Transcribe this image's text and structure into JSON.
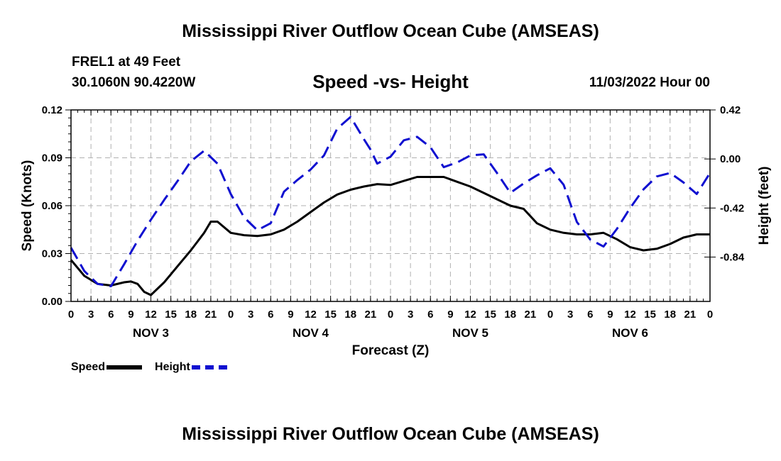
{
  "page": {
    "title_top": "Mississippi River Outflow Ocean Cube (AMSEAS)",
    "title_bottom": "Mississippi River Outflow Ocean Cube (AMSEAS)",
    "station": "FREL1 at 49 Feet",
    "coords": "30.1060N  90.4220W",
    "subtitle": "Speed -vs- Height",
    "datetime": "11/03/2022 Hour 00"
  },
  "legend": {
    "speed": "Speed",
    "height": "Height"
  },
  "colors": {
    "speed": "#000000",
    "height": "#1010d0",
    "grid": "#b0b0b0"
  },
  "chart_data": {
    "type": "line",
    "title": "Speed -vs- Height",
    "xlabel": "Forecast (Z)",
    "ylabel": "Speed (Knots)",
    "y2label": "Height (feet)",
    "xlim": [
      0,
      96
    ],
    "ylim": [
      0,
      0.12
    ],
    "y2lim": [
      -1.22,
      0.42
    ],
    "yticks": [
      0.0,
      0.03,
      0.06,
      0.09,
      0.12
    ],
    "ytick_labels": [
      "0.00",
      "0.03",
      "0.06",
      "0.09",
      "0.12"
    ],
    "y2ticks": [
      0.42,
      0.0,
      -0.42,
      -0.84
    ],
    "y2tick_labels": [
      "0.42",
      "0.00",
      "-0.42",
      "-0.84"
    ],
    "xtick_labels": [
      "0",
      "3",
      "6",
      "9",
      "12",
      "15",
      "18",
      "21",
      "0",
      "3",
      "6",
      "9",
      "12",
      "15",
      "18",
      "21",
      "0",
      "3",
      "6",
      "9",
      "12",
      "15",
      "18",
      "21",
      "0",
      "3",
      "6",
      "9",
      "12",
      "15",
      "18",
      "21",
      "0"
    ],
    "day_labels": [
      "NOV 3",
      "NOV 4",
      "NOV 5",
      "NOV 6"
    ],
    "grid": true,
    "series": [
      {
        "name": "Speed",
        "axis": "left",
        "style": "solid",
        "x": [
          0,
          2,
          4,
          6,
          8,
          9,
          10,
          11,
          12,
          14,
          16,
          18,
          20,
          21,
          22,
          24,
          26,
          28,
          30,
          32,
          34,
          36,
          38,
          40,
          42,
          44,
          46,
          48,
          50,
          52,
          54,
          56,
          58,
          60,
          62,
          64,
          66,
          68,
          70,
          72,
          74,
          76,
          78,
          80,
          82,
          84,
          86,
          88,
          90,
          92,
          94,
          96
        ],
        "y": [
          0.026,
          0.016,
          0.011,
          0.01,
          0.012,
          0.0125,
          0.011,
          0.006,
          0.004,
          0.012,
          0.022,
          0.032,
          0.043,
          0.05,
          0.05,
          0.043,
          0.0415,
          0.041,
          0.042,
          0.045,
          0.05,
          0.056,
          0.062,
          0.067,
          0.07,
          0.072,
          0.0735,
          0.073,
          0.0755,
          0.078,
          0.078,
          0.078,
          0.075,
          0.072,
          0.068,
          0.064,
          0.06,
          0.058,
          0.049,
          0.045,
          0.043,
          0.042,
          0.042,
          0.043,
          0.039,
          0.034,
          0.032,
          0.033,
          0.036,
          0.04,
          0.042,
          0.042
        ]
      },
      {
        "name": "Height",
        "axis": "right",
        "style": "dashed",
        "x": [
          0,
          2,
          4,
          6,
          8,
          10,
          12,
          14,
          16,
          18,
          20,
          22,
          24,
          26,
          28,
          30,
          32,
          34,
          36,
          38,
          40,
          42,
          44,
          45,
          46,
          48,
          50,
          52,
          54,
          56,
          58,
          60,
          62,
          64,
          66,
          68,
          70,
          72,
          74,
          76,
          78,
          80,
          82,
          84,
          86,
          88,
          90,
          92,
          94,
          96
        ],
        "y": [
          -0.76,
          -0.96,
          -1.07,
          -1.09,
          -0.9,
          -0.7,
          -0.52,
          -0.35,
          -0.19,
          -0.02,
          0.07,
          -0.04,
          -0.3,
          -0.5,
          -0.61,
          -0.55,
          -0.28,
          -0.18,
          -0.09,
          0.03,
          0.26,
          0.36,
          0.17,
          0.08,
          -0.04,
          0.02,
          0.16,
          0.19,
          0.1,
          -0.07,
          -0.03,
          0.03,
          0.04,
          -0.12,
          -0.29,
          -0.21,
          -0.14,
          -0.08,
          -0.22,
          -0.54,
          -0.69,
          -0.75,
          -0.6,
          -0.42,
          -0.26,
          -0.15,
          -0.12,
          -0.2,
          -0.3,
          -0.12
        ]
      }
    ]
  }
}
